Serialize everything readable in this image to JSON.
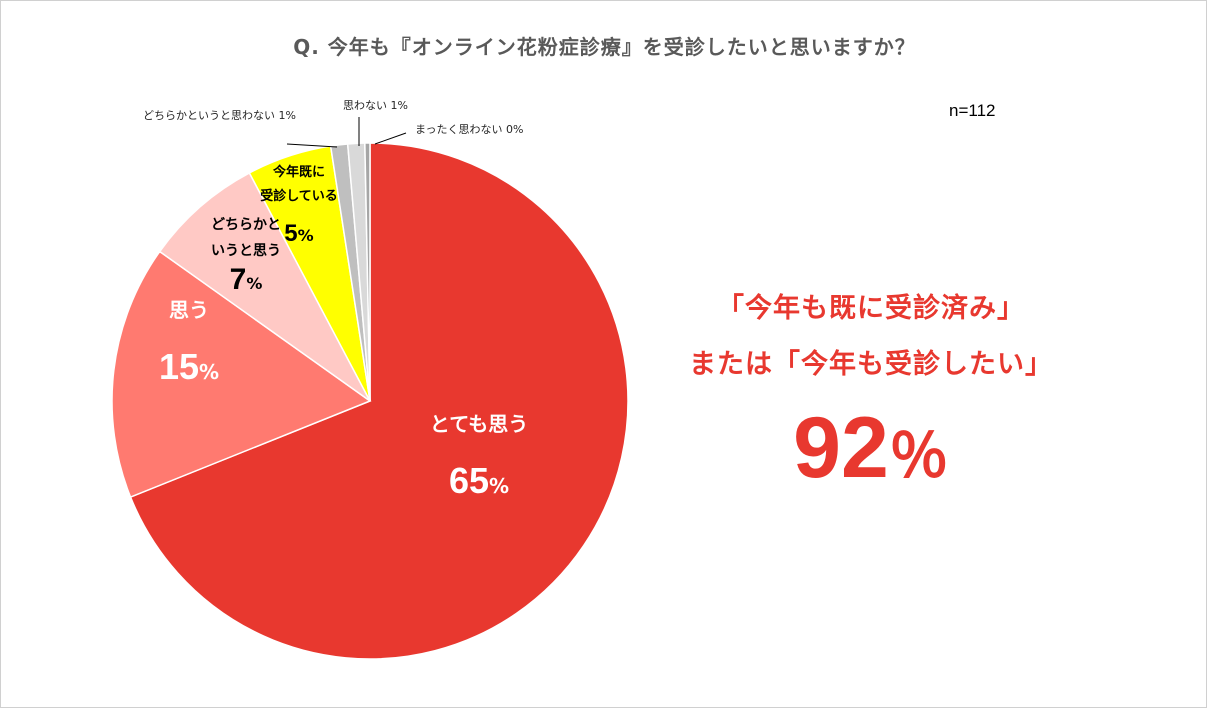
{
  "chart_data": {
    "type": "pie",
    "title": "Q.  今年も『オンライン花粉症診療』を受診したいと思いますか？",
    "sample_size": "n=112",
    "slices": [
      {
        "label": "とても思う",
        "value": 65,
        "value_text": "65",
        "color": "#e8382f",
        "label_color": "#ffffff",
        "label_lines": [
          "とても思う"
        ]
      },
      {
        "label": "思う",
        "value": 15,
        "value_text": "15",
        "color": "#ff7a70",
        "label_color": "#ffffff",
        "label_lines": [
          "思う"
        ]
      },
      {
        "label": "どちらかというと思う",
        "value": 7,
        "value_text": "7",
        "color": "#ffc9c5",
        "label_color": "#000000",
        "label_lines": [
          "どちらかと",
          "いうと思う"
        ]
      },
      {
        "label": "今年既に受診している",
        "value": 5,
        "value_text": "5",
        "color": "#ffff00",
        "label_color": "#000000",
        "label_lines": [
          "今年既に",
          "受診している"
        ]
      },
      {
        "label": "どちらかというと思わない",
        "value": 1,
        "value_text": "1%",
        "color": "#bfbfbf",
        "callout": "どちらかというと思わない 1%"
      },
      {
        "label": "思わない",
        "value": 1,
        "value_text": "1%",
        "color": "#d9d9d9",
        "callout": "思わない 1%"
      },
      {
        "label": "まったく思わない",
        "value": 0,
        "value_text": "0%",
        "color": "#a6a6a6",
        "callout": "まったく思わない 0%"
      }
    ],
    "unit": "%"
  },
  "summary": {
    "line1": "「今年も既に受診済み」",
    "line2": "または「今年も受診したい」",
    "value": "92",
    "unit": "％",
    "color": "#e8382f"
  }
}
